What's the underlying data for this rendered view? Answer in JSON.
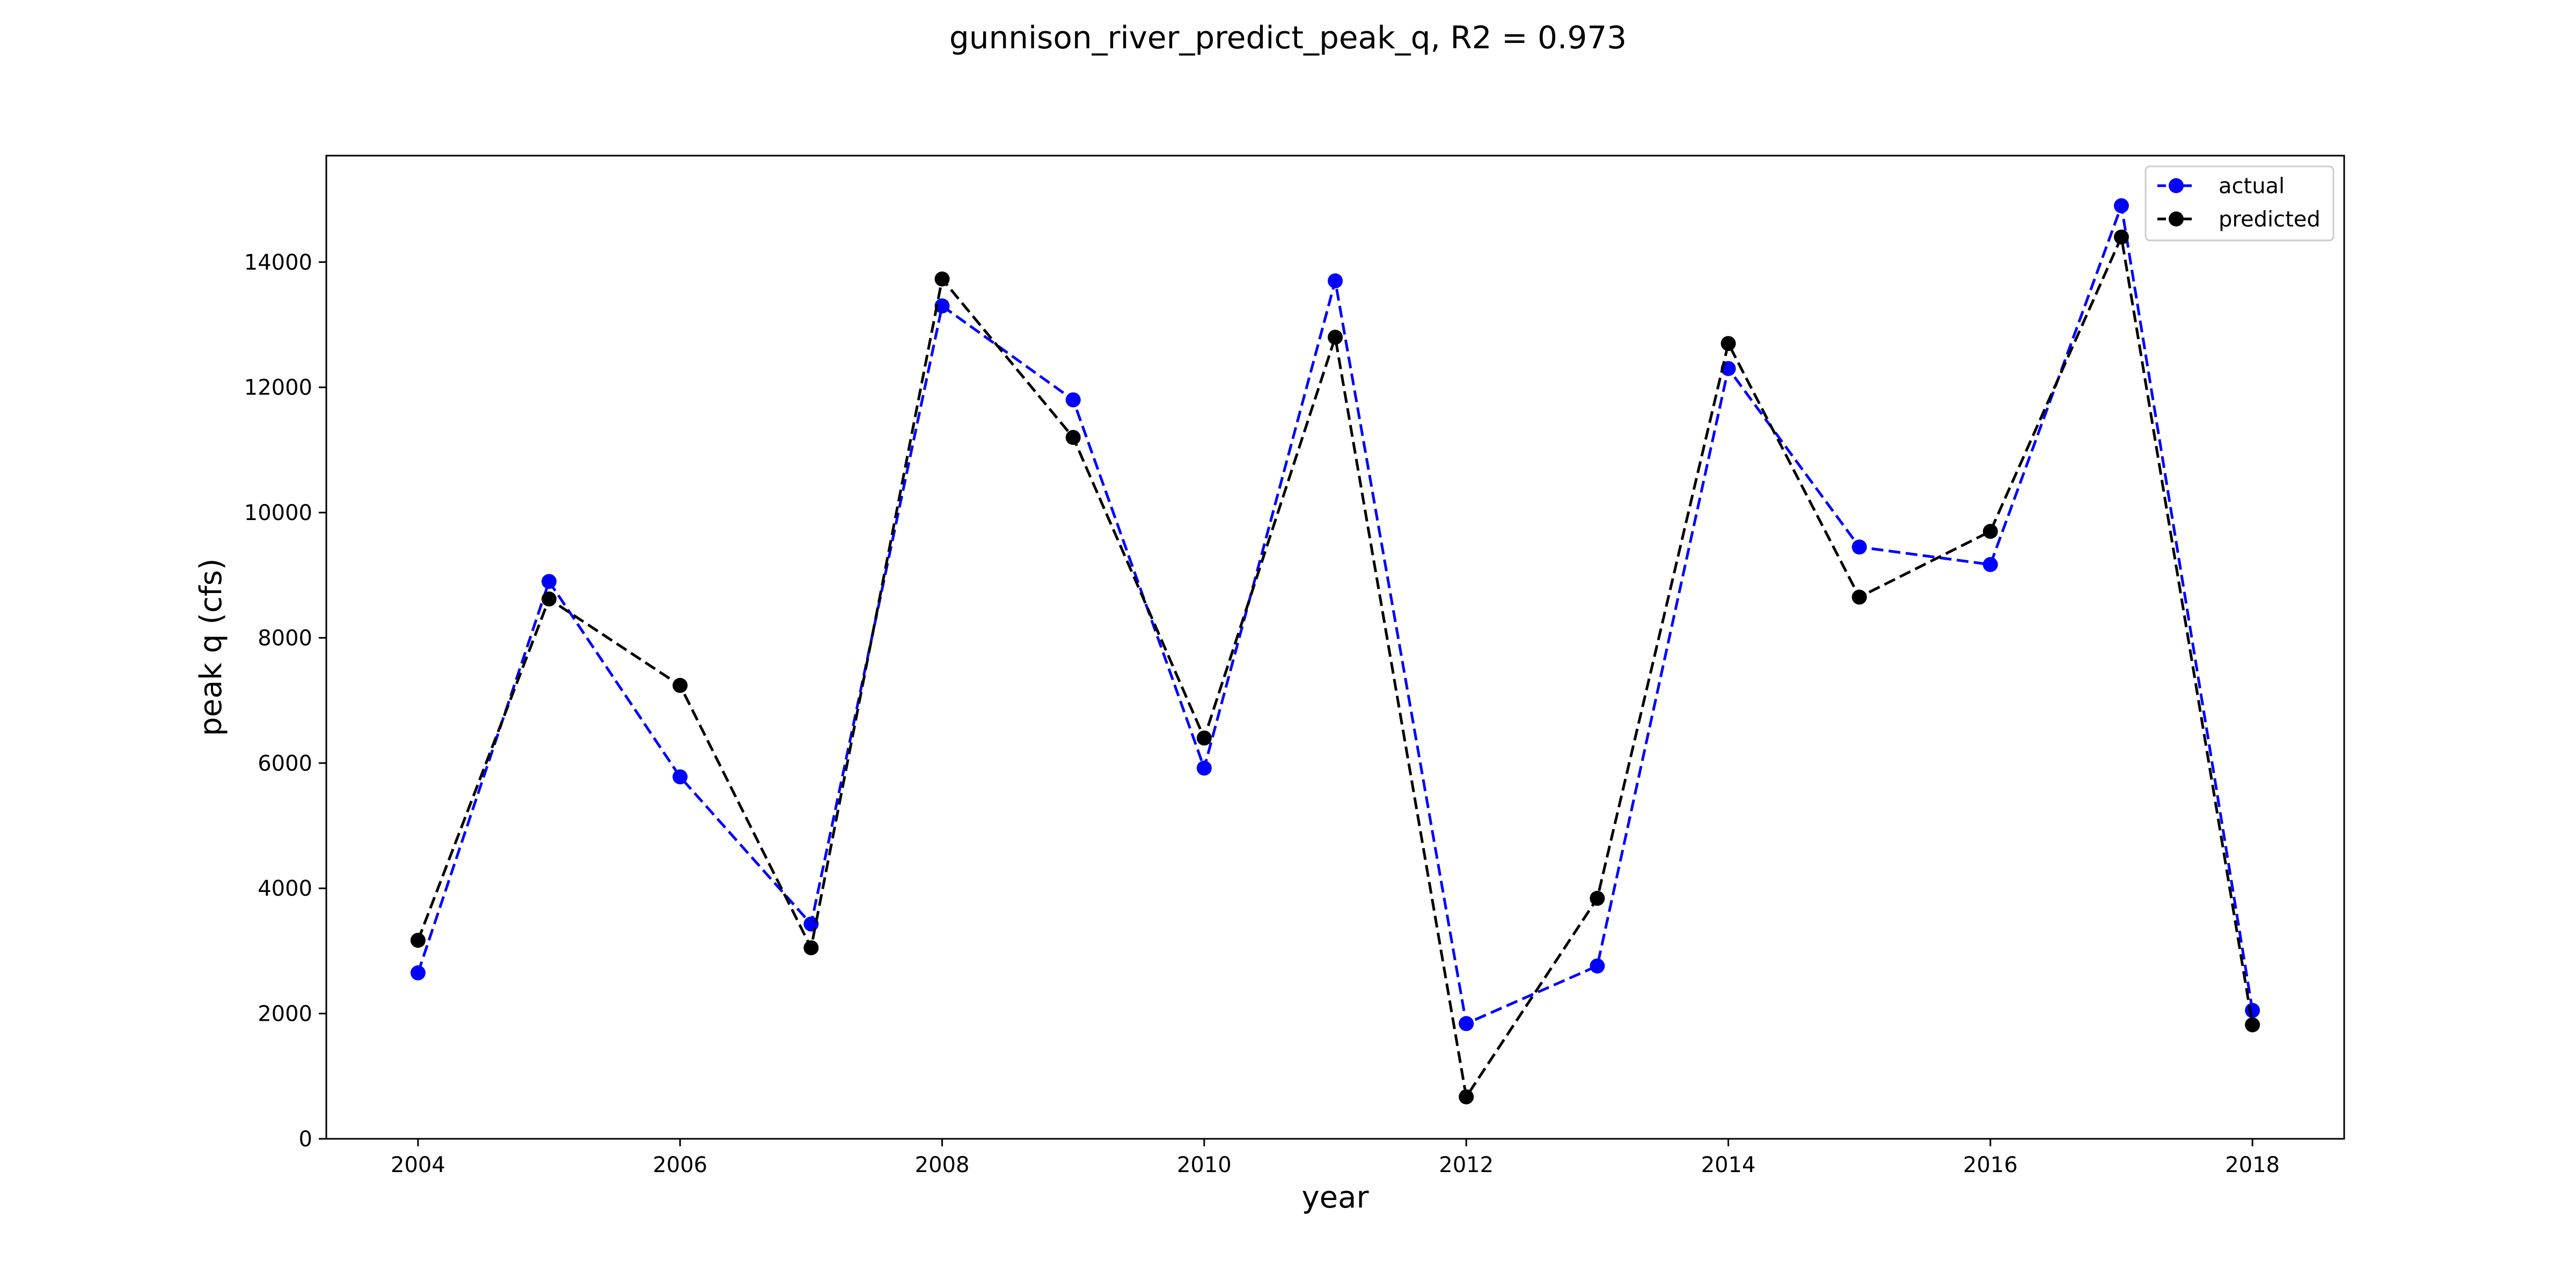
{
  "chart_data": {
    "type": "line",
    "title": "gunnison_river_predict_peak_q, R2 = 0.973",
    "xlabel": "year",
    "ylabel": "peak q (cfs)",
    "x": [
      2004,
      2005,
      2006,
      2007,
      2008,
      2009,
      2010,
      2011,
      2012,
      2013,
      2014,
      2015,
      2016,
      2017,
      2018
    ],
    "xlim": [
      2003.3,
      2018.7
    ],
    "ylim": [
      0,
      15700
    ],
    "xticks": [
      2004,
      2006,
      2008,
      2010,
      2012,
      2014,
      2016,
      2018
    ],
    "yticks": [
      0,
      2000,
      4000,
      6000,
      8000,
      10000,
      12000,
      14000
    ],
    "grid": false,
    "legend_position": "top-right",
    "series": [
      {
        "name": "actual",
        "color": "#0000ff",
        "line_style": "dashed",
        "marker": "circle",
        "values": [
          2650,
          8900,
          5780,
          3430,
          13300,
          11800,
          5920,
          13700,
          1840,
          2760,
          12300,
          9450,
          9170,
          14900,
          2050
        ]
      },
      {
        "name": "predicted",
        "color": "#000000",
        "line_style": "dashed",
        "marker": "circle",
        "values": [
          3170,
          8620,
          7240,
          3050,
          13730,
          11200,
          6400,
          12800,
          670,
          3840,
          12700,
          8650,
          9700,
          14400,
          1820
        ]
      }
    ]
  }
}
